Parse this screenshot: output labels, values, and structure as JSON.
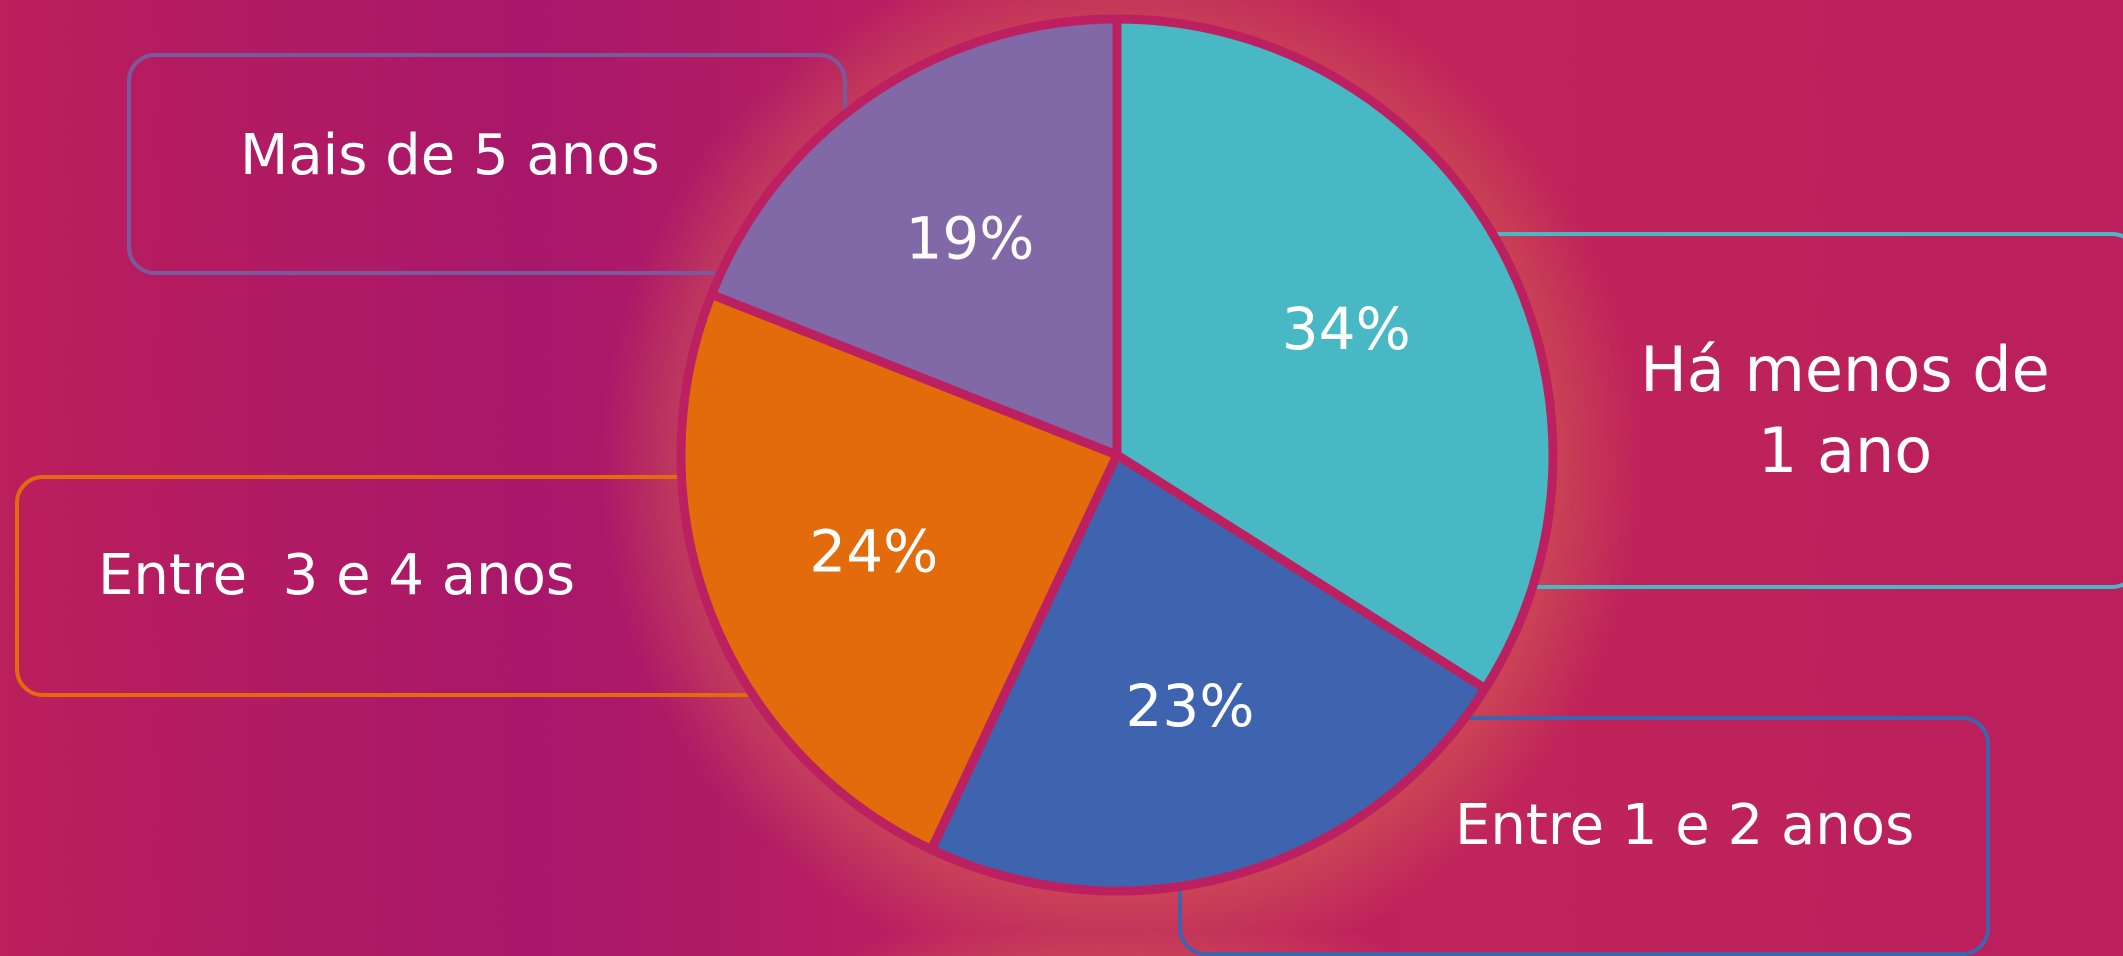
{
  "chart_data": {
    "type": "pie",
    "slices": [
      {
        "label": "Há menos de 1 ano",
        "value": 34,
        "display": "34%",
        "color": "#48b8c5"
      },
      {
        "label": "Entre 1 e 2 anos",
        "value": 23,
        "display": "23%",
        "color": "#3f64af"
      },
      {
        "label": "Entre  3 e 4 anos",
        "value": 24,
        "display": "24%",
        "color": "#e36b0c"
      },
      {
        "label": "Mais de 5 anos",
        "value": 19,
        "display": "19%",
        "color": "#8069a6"
      }
    ]
  },
  "labels": {
    "mais5": "Mais de 5 anos",
    "menos1_line1": "Há menos de",
    "menos1_line2": "1 ano",
    "entre34": "Entre  3 e 4 anos",
    "entre12": "Entre 1 e 2 anos"
  },
  "colors": {
    "pie_border": "#bd2060",
    "purple": "#8069a6",
    "teal": "#48b8c5",
    "orange": "#e36b0c",
    "blue": "#3f64af"
  }
}
